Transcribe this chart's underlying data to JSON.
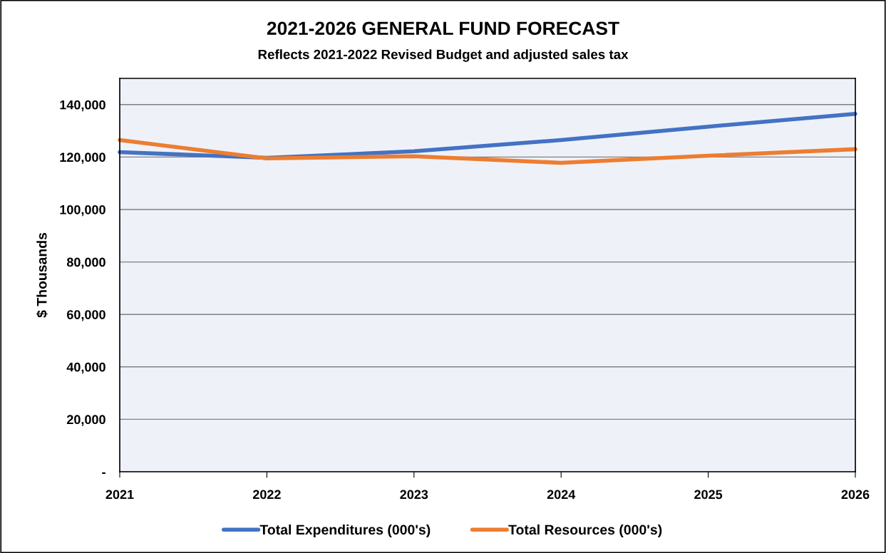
{
  "chart_data": {
    "type": "line",
    "title": "2021-2026 GENERAL FUND FORECAST",
    "subtitle": "Reflects 2021-2022 Revised Budget and adjusted sales tax",
    "ylabel": "$ Thousands",
    "x": [
      2021,
      2022,
      2023,
      2024,
      2025,
      2026
    ],
    "series": [
      {
        "name": "Total Expenditures (000's)",
        "color": "#4472c4",
        "values": [
          121900,
          119700,
          122200,
          126500,
          131600,
          136500
        ]
      },
      {
        "name": "Total Resources (000's)",
        "color": "#ed7d31",
        "values": [
          126500,
          119500,
          120300,
          117800,
          120500,
          123000
        ]
      }
    ],
    "xlim": [
      2021,
      2026
    ],
    "xticks": [
      2021,
      2022,
      2023,
      2024,
      2025,
      2026
    ],
    "ylim": [
      0,
      150000
    ],
    "yticks": [
      {
        "value": 0,
        "label": "-"
      },
      {
        "value": 20000,
        "label": "20,000"
      },
      {
        "value": 40000,
        "label": "40,000"
      },
      {
        "value": 60000,
        "label": "60,000"
      },
      {
        "value": 80000,
        "label": "80,000"
      },
      {
        "value": 100000,
        "label": "100,000"
      },
      {
        "value": 120000,
        "label": "120,000"
      },
      {
        "value": 140000,
        "label": "140,000"
      }
    ],
    "grid": "y",
    "legend": "bottom",
    "marker": "none",
    "line_style": "solid"
  }
}
